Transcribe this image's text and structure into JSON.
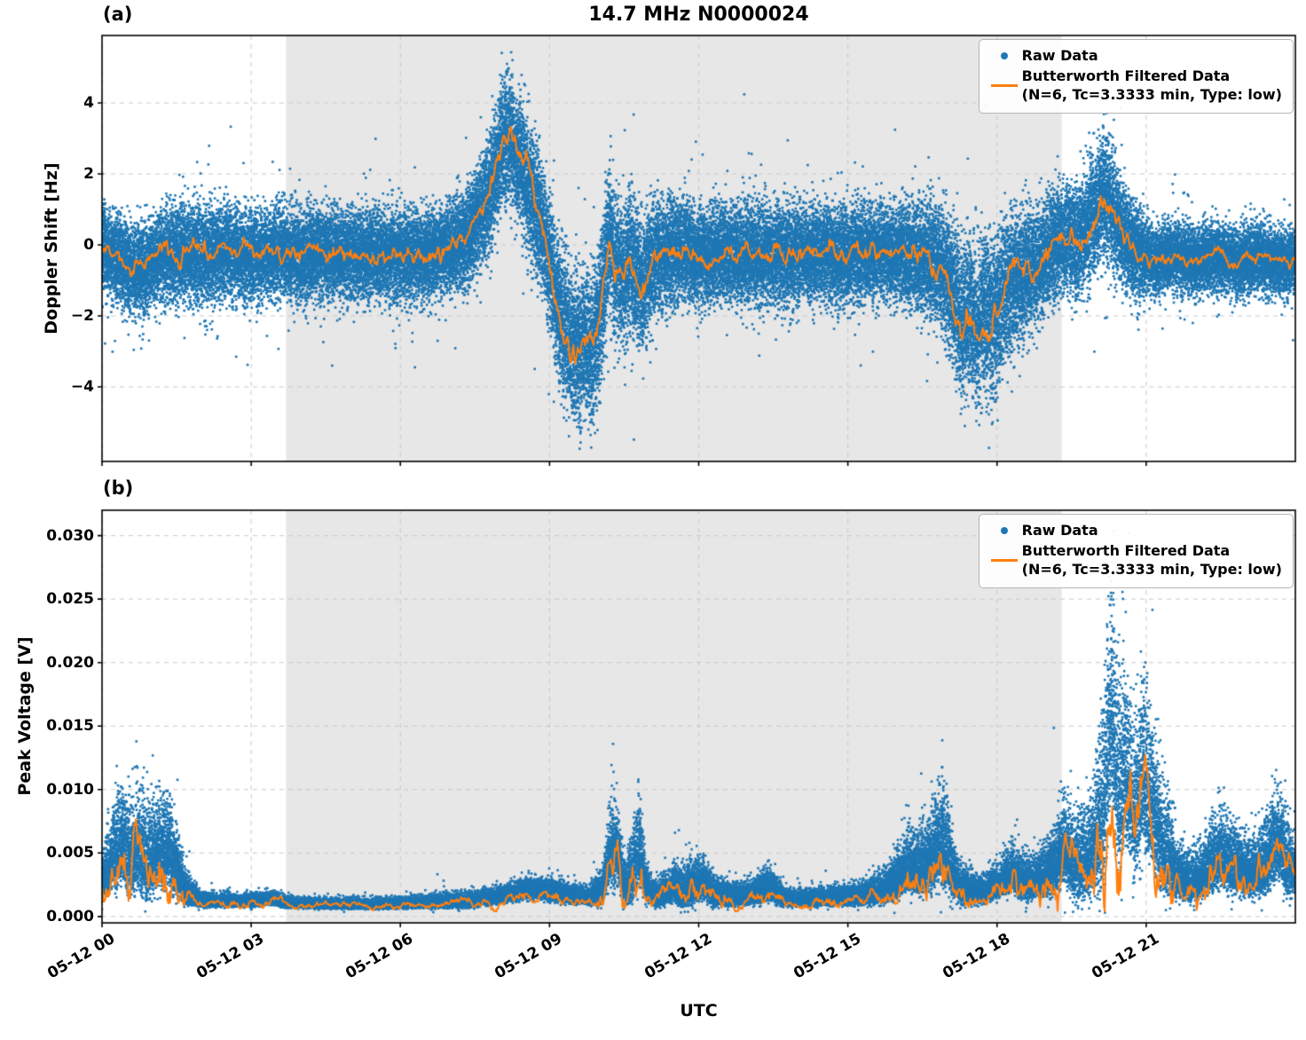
{
  "colors": {
    "raw": "#1f77b4",
    "filtered": "#ff7f0e",
    "shade": "#e7e7e7",
    "grid": "#c9c9c9",
    "spine": "#000000"
  },
  "chart_data": [
    {
      "type": "scatter",
      "panel_label": "(a)",
      "title": "14.7 MHz N0000024",
      "ylabel": "Doppler Shift [Hz]",
      "xlabel": "",
      "legend": {
        "raw": "Raw Data",
        "filtered_line1": "Butterworth Filtered Data",
        "filtered_line2": "(N=6, Tc=3.3333 min, Type: low)"
      },
      "legend_position": "upper right",
      "grid": "dashed",
      "x_range_hours": [
        0,
        24
      ],
      "xtick_hours": [
        0,
        3,
        6,
        9,
        12,
        15,
        18,
        21
      ],
      "xtick_labels": [
        "05-12 00",
        "05-12 03",
        "05-12 06",
        "05-12 09",
        "05-12 12",
        "05-12 15",
        "05-12 18",
        "05-12 21"
      ],
      "show_xtick_labels": false,
      "ylim": [
        -6.1,
        5.9
      ],
      "ytick_values": [
        4,
        2,
        0,
        -2,
        -4
      ],
      "ytick_labels": [
        "4",
        "2",
        "0",
        "−2",
        "−4"
      ],
      "shade_hours": [
        3.7,
        19.3
      ],
      "seed": 7,
      "n_points": 55000,
      "skew": false,
      "clamp": [
        -5.75,
        5.45
      ],
      "line_wiggle": 0.28,
      "line_clamp": [
        -6.0,
        5.8
      ],
      "filtered_keyframes": [
        [
          0,
          -0.1
        ],
        [
          0.3,
          -0.3
        ],
        [
          0.6,
          -0.75
        ],
        [
          0.9,
          -0.6
        ],
        [
          1.2,
          -0.3
        ],
        [
          1.6,
          -0.2
        ],
        [
          2,
          -0.3
        ],
        [
          2.5,
          -0.2
        ],
        [
          3,
          -0.3
        ],
        [
          3.5,
          -0.2
        ],
        [
          4,
          -0.3
        ],
        [
          4.5,
          -0.25
        ],
        [
          5,
          -0.3
        ],
        [
          5.5,
          -0.2
        ],
        [
          6,
          -0.35
        ],
        [
          6.5,
          -0.3
        ],
        [
          7,
          -0.15
        ],
        [
          7.4,
          0.3
        ],
        [
          7.7,
          1.1
        ],
        [
          7.9,
          2.0
        ],
        [
          8.05,
          2.9
        ],
        [
          8.2,
          2.95
        ],
        [
          8.4,
          2.4
        ],
        [
          8.6,
          1.6
        ],
        [
          8.8,
          0.8
        ],
        [
          9,
          -0.4
        ],
        [
          9.2,
          -1.8
        ],
        [
          9.45,
          -2.8
        ],
        [
          9.6,
          -3.1
        ],
        [
          9.75,
          -2.6
        ],
        [
          9.85,
          -3.0
        ],
        [
          10,
          -2.1
        ],
        [
          10.1,
          -1.0
        ],
        [
          10.2,
          0.2
        ],
        [
          10.35,
          -0.6
        ],
        [
          10.5,
          -1.1
        ],
        [
          10.6,
          -0.3
        ],
        [
          10.75,
          -0.9
        ],
        [
          10.9,
          -1.1
        ],
        [
          11.05,
          -0.5
        ],
        [
          11.3,
          -0.25
        ],
        [
          11.7,
          -0.2
        ],
        [
          12.1,
          -0.3
        ],
        [
          12.5,
          -0.2
        ],
        [
          13,
          -0.3
        ],
        [
          13.5,
          -0.25
        ],
        [
          14,
          -0.3
        ],
        [
          14.5,
          -0.2
        ],
        [
          15,
          -0.3
        ],
        [
          15.5,
          -0.2
        ],
        [
          16,
          -0.25
        ],
        [
          16.5,
          -0.35
        ],
        [
          16.9,
          -0.6
        ],
        [
          17.1,
          -1.3
        ],
        [
          17.3,
          -2.2
        ],
        [
          17.45,
          -1.7
        ],
        [
          17.6,
          -2.5
        ],
        [
          17.75,
          -1.9
        ],
        [
          17.9,
          -2.3
        ],
        [
          18.05,
          -1.7
        ],
        [
          18.2,
          -1.2
        ],
        [
          18.4,
          -0.95
        ],
        [
          18.7,
          -0.6
        ],
        [
          19,
          -0.3
        ],
        [
          19.2,
          0.1
        ],
        [
          19.4,
          0.2
        ],
        [
          19.6,
          0.05
        ],
        [
          19.8,
          0.5
        ],
        [
          20,
          0.9
        ],
        [
          20.15,
          1.4
        ],
        [
          20.3,
          1.0
        ],
        [
          20.5,
          0.4
        ],
        [
          20.7,
          0.0
        ],
        [
          20.9,
          -0.3
        ],
        [
          21.2,
          -0.45
        ],
        [
          21.6,
          -0.3
        ],
        [
          22,
          -0.45
        ],
        [
          22.4,
          -0.3
        ],
        [
          22.8,
          -0.5
        ],
        [
          23.2,
          -0.35
        ],
        [
          23.6,
          -0.45
        ],
        [
          24,
          -0.55
        ]
      ],
      "raw_spread_keyframes": [
        [
          0,
          0.55
        ],
        [
          0.5,
          0.6
        ],
        [
          1,
          0.6
        ],
        [
          1.5,
          0.65
        ],
        [
          2,
          0.65
        ],
        [
          3,
          0.6
        ],
        [
          4,
          0.6
        ],
        [
          5,
          0.6
        ],
        [
          6,
          0.6
        ],
        [
          7,
          0.6
        ],
        [
          7.6,
          0.7
        ],
        [
          8,
          0.8
        ],
        [
          8.5,
          0.85
        ],
        [
          9,
          0.9
        ],
        [
          9.5,
          1.0
        ],
        [
          9.9,
          1.0
        ],
        [
          10.3,
          0.95
        ],
        [
          10.8,
          0.9
        ],
        [
          11.2,
          0.75
        ],
        [
          12,
          0.65
        ],
        [
          13,
          0.65
        ],
        [
          14,
          0.65
        ],
        [
          15,
          0.65
        ],
        [
          16,
          0.6
        ],
        [
          16.8,
          0.8
        ],
        [
          17.3,
          1.0
        ],
        [
          17.8,
          1.05
        ],
        [
          18.3,
          0.95
        ],
        [
          18.8,
          0.75
        ],
        [
          19.3,
          0.7
        ],
        [
          19.8,
          0.8
        ],
        [
          20.2,
          0.85
        ],
        [
          20.6,
          0.7
        ],
        [
          21,
          0.5
        ],
        [
          21.5,
          0.45
        ],
        [
          22,
          0.45
        ],
        [
          23,
          0.45
        ],
        [
          24,
          0.45
        ]
      ]
    },
    {
      "type": "scatter",
      "panel_label": "(b)",
      "title": "",
      "ylabel": "Peak Voltage [V]",
      "xlabel": "UTC",
      "legend": {
        "raw": "Raw Data",
        "filtered_line1": "Butterworth Filtered Data",
        "filtered_line2": "(N=6, Tc=3.3333 min, Type: low)"
      },
      "legend_position": "upper right",
      "grid": "dashed",
      "x_range_hours": [
        0,
        24
      ],
      "xtick_hours": [
        0,
        3,
        6,
        9,
        12,
        15,
        18,
        21
      ],
      "xtick_labels": [
        "05-12 00",
        "05-12 03",
        "05-12 06",
        "05-12 09",
        "05-12 12",
        "05-12 15",
        "05-12 18",
        "05-12 21"
      ],
      "show_xtick_labels": true,
      "ylim": [
        -0.0005,
        0.032
      ],
      "ytick_values": [
        0.03,
        0.025,
        0.02,
        0.015,
        0.01,
        0.005,
        0.0
      ],
      "ytick_labels": [
        "0.030",
        "0.025",
        "0.020",
        "0.015",
        "0.010",
        "0.005",
        "0.000"
      ],
      "shade_hours": [
        3.7,
        19.3
      ],
      "seed": 13,
      "n_points": 45000,
      "skew": true,
      "clamp": [
        0.0002,
        0.0313
      ],
      "line_wiggle": 0.5,
      "line_clamp": [
        0.0004,
        0.031
      ],
      "filtered_keyframes": [
        [
          0,
          0.0022
        ],
        [
          0.2,
          0.0035
        ],
        [
          0.4,
          0.0045
        ],
        [
          0.55,
          0.0032
        ],
        [
          0.7,
          0.0042
        ],
        [
          0.9,
          0.0028
        ],
        [
          1.1,
          0.0038
        ],
        [
          1.3,
          0.0042
        ],
        [
          1.5,
          0.0028
        ],
        [
          1.7,
          0.0015
        ],
        [
          2,
          0.001
        ],
        [
          2.5,
          0.001
        ],
        [
          3,
          0.001
        ],
        [
          3.4,
          0.0012
        ],
        [
          3.7,
          0.0009
        ],
        [
          4.5,
          0.0008
        ],
        [
          5.5,
          0.0008
        ],
        [
          6.5,
          0.0009
        ],
        [
          7.5,
          0.001
        ],
        [
          8.2,
          0.0015
        ],
        [
          8.6,
          0.0018
        ],
        [
          9,
          0.0017
        ],
        [
          9.4,
          0.0014
        ],
        [
          9.8,
          0.0013
        ],
        [
          10.05,
          0.0015
        ],
        [
          10.2,
          0.0038
        ],
        [
          10.35,
          0.0042
        ],
        [
          10.5,
          0.0018
        ],
        [
          10.65,
          0.0025
        ],
        [
          10.8,
          0.0042
        ],
        [
          10.95,
          0.0018
        ],
        [
          11.2,
          0.0012
        ],
        [
          11.5,
          0.0019
        ],
        [
          11.65,
          0.0014
        ],
        [
          11.9,
          0.0018
        ],
        [
          12.1,
          0.0022
        ],
        [
          12.3,
          0.0013
        ],
        [
          12.7,
          0.0012
        ],
        [
          13.1,
          0.0014
        ],
        [
          13.4,
          0.0019
        ],
        [
          13.7,
          0.0012
        ],
        [
          14.2,
          0.0011
        ],
        [
          14.7,
          0.0012
        ],
        [
          15.2,
          0.0013
        ],
        [
          15.7,
          0.0016
        ],
        [
          16,
          0.0024
        ],
        [
          16.2,
          0.0032
        ],
        [
          16.45,
          0.0028
        ],
        [
          16.7,
          0.0035
        ],
        [
          16.9,
          0.0048
        ],
        [
          17.05,
          0.003
        ],
        [
          17.3,
          0.0017
        ],
        [
          17.7,
          0.0015
        ],
        [
          18,
          0.002
        ],
        [
          18.3,
          0.0028
        ],
        [
          18.6,
          0.002
        ],
        [
          18.9,
          0.0024
        ],
        [
          19.15,
          0.0032
        ],
        [
          19.35,
          0.0042
        ],
        [
          19.55,
          0.0028
        ],
        [
          19.8,
          0.003
        ],
        [
          20,
          0.0045
        ],
        [
          20.15,
          0.006
        ],
        [
          20.3,
          0.014
        ],
        [
          20.45,
          0.007
        ],
        [
          20.6,
          0.009
        ],
        [
          20.75,
          0.0062
        ],
        [
          20.95,
          0.0085
        ],
        [
          21.1,
          0.0068
        ],
        [
          21.3,
          0.0042
        ],
        [
          21.6,
          0.0025
        ],
        [
          21.9,
          0.002
        ],
        [
          22.2,
          0.0028
        ],
        [
          22.5,
          0.0038
        ],
        [
          22.8,
          0.003
        ],
        [
          23.1,
          0.0026
        ],
        [
          23.4,
          0.0032
        ],
        [
          23.65,
          0.0048
        ],
        [
          23.85,
          0.0032
        ],
        [
          24,
          0.0026
        ]
      ],
      "raw_spread_keyframes": [
        [
          0,
          0.0012
        ],
        [
          0.3,
          0.0028
        ],
        [
          0.7,
          0.003
        ],
        [
          1.1,
          0.0028
        ],
        [
          1.4,
          0.0025
        ],
        [
          1.7,
          0.001
        ],
        [
          2,
          0.0004
        ],
        [
          3,
          0.0004
        ],
        [
          4,
          0.0003
        ],
        [
          5,
          0.0003
        ],
        [
          6,
          0.0003
        ],
        [
          7,
          0.0004
        ],
        [
          8,
          0.0005
        ],
        [
          8.6,
          0.0006
        ],
        [
          9.2,
          0.0006
        ],
        [
          9.8,
          0.0005
        ],
        [
          10.1,
          0.0012
        ],
        [
          10.3,
          0.0028
        ],
        [
          10.5,
          0.0012
        ],
        [
          10.8,
          0.0026
        ],
        [
          11,
          0.0008
        ],
        [
          11.4,
          0.0009
        ],
        [
          11.6,
          0.0013
        ],
        [
          12,
          0.0013
        ],
        [
          12.4,
          0.0008
        ],
        [
          13,
          0.0006
        ],
        [
          13.4,
          0.001
        ],
        [
          13.8,
          0.0005
        ],
        [
          14.5,
          0.0005
        ],
        [
          15.2,
          0.0006
        ],
        [
          15.8,
          0.001
        ],
        [
          16.2,
          0.0018
        ],
        [
          16.6,
          0.0022
        ],
        [
          16.9,
          0.0032
        ],
        [
          17.2,
          0.0012
        ],
        [
          17.6,
          0.0008
        ],
        [
          18,
          0.001
        ],
        [
          18.4,
          0.0015
        ],
        [
          18.8,
          0.0012
        ],
        [
          19.2,
          0.0022
        ],
        [
          19.5,
          0.0025
        ],
        [
          19.9,
          0.0028
        ],
        [
          20.2,
          0.006
        ],
        [
          20.4,
          0.0062
        ],
        [
          20.7,
          0.0048
        ],
        [
          21,
          0.005
        ],
        [
          21.3,
          0.0036
        ],
        [
          21.7,
          0.0015
        ],
        [
          22.1,
          0.0015
        ],
        [
          22.5,
          0.0025
        ],
        [
          22.9,
          0.0018
        ],
        [
          23.2,
          0.0018
        ],
        [
          23.6,
          0.0028
        ],
        [
          23.9,
          0.0022
        ],
        [
          24,
          0.0012
        ]
      ]
    }
  ]
}
